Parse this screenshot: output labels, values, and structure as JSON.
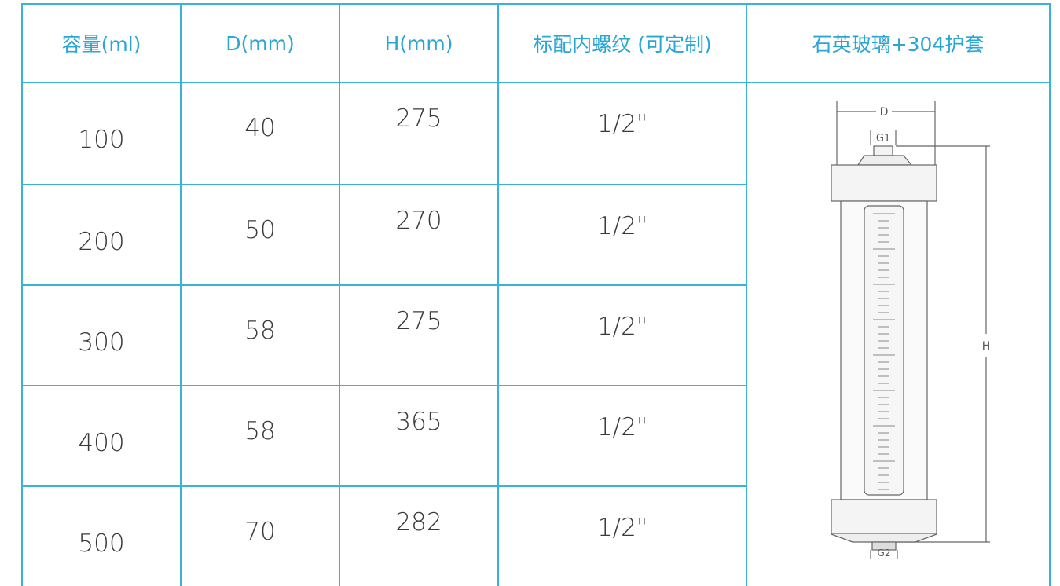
{
  "table": {
    "header": [
      "容量(ml)",
      "D(mm)",
      "H(mm)",
      "标配内螺纹 (可定制)",
      "石英玻璃+304护套"
    ],
    "rows": [
      [
        100,
        40,
        275,
        "1/2\""
      ],
      [
        200,
        50,
        270,
        "1/2\""
      ],
      [
        300,
        58,
        275,
        "1/2\""
      ],
      [
        400,
        58,
        365,
        "1/2\""
      ],
      [
        500,
        70,
        282,
        "1/2\""
      ]
    ]
  },
  "diagram": {
    "labels": [
      "D",
      "G1",
      "H",
      "G2"
    ]
  }
}
